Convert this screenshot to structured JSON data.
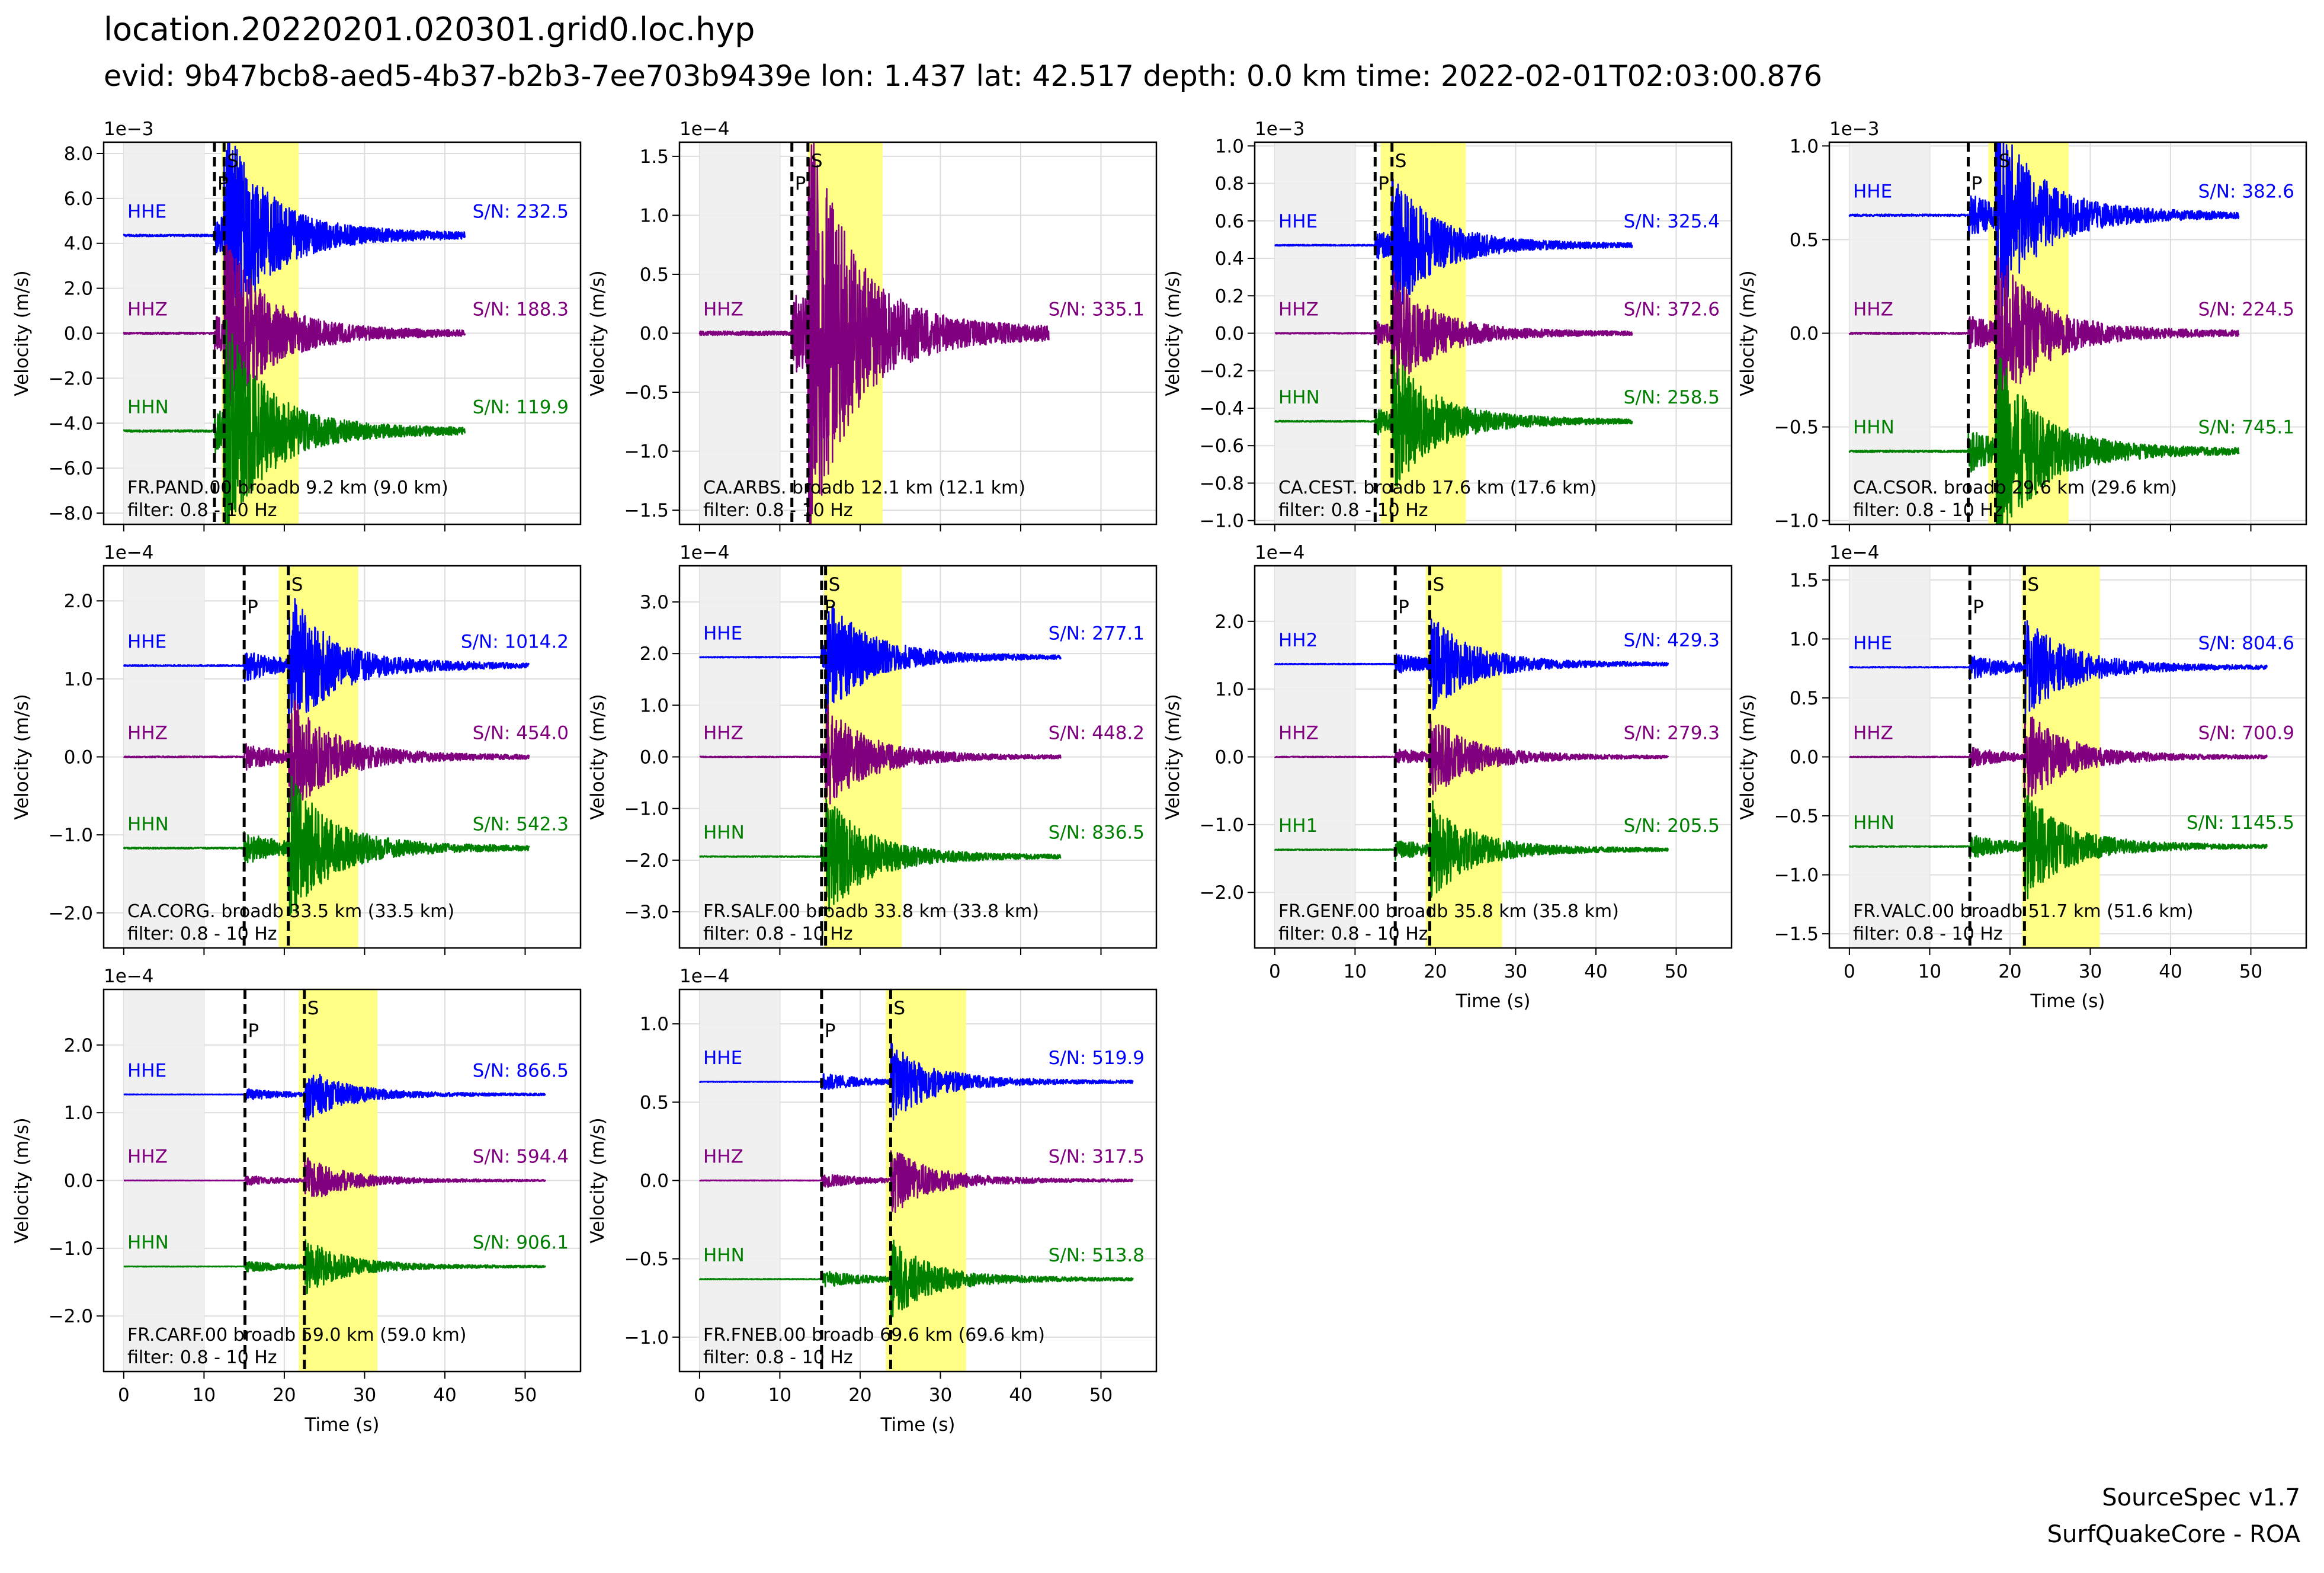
{
  "figure": {
    "title": "location.20220201.020301.grid0.loc.hyp",
    "subtitle": "evid: 9b47bcb8-aed5-4b37-b2b3-7ee703b9439e lon: 1.437 lat: 42.517 depth: 0.0 km time: 2022-02-01T02:03:00.876",
    "credit_line1": "SourceSpec v1.7",
    "credit_line2": "SurfQuakeCore - ROA"
  },
  "colors": {
    "E": "#0000ff",
    "Z": "#800080",
    "N": "#008000",
    "noise_window": "#eeeeee",
    "signal_window": "#ffff80",
    "grid": "#dddddd"
  },
  "chart_data": [
    {
      "type": "line",
      "station": "FR.PAND.00 broadb 9.2 km (9.0 km)",
      "filter": "filter: 0.8 - 10 Hz",
      "exponent": "1e−3",
      "ylabel": "Velocity (m/s)",
      "xlabel": "",
      "ylim": [
        -8.5,
        8.5
      ],
      "yticks": [
        8,
        6,
        4,
        2,
        0,
        -2,
        -4,
        -6,
        -8
      ],
      "yticklabels": [
        "8.0",
        "6.0",
        "4.0",
        "2.0",
        "0.0",
        "−2.0",
        "−4.0",
        "−6.0",
        "−8.0"
      ],
      "xlim": [
        -2.5,
        56.9
      ],
      "xticks": [
        0,
        10,
        20,
        30,
        40,
        50
      ],
      "xticklabels": [],
      "noise_window": [
        0,
        10
      ],
      "signal_window": [
        12.2,
        21.8
      ],
      "p_time": 11.3,
      "s_time": 12.5,
      "amp": 3.9,
      "duration": 42.5,
      "series": [
        {
          "name": "HHE",
          "sn": "S/N: 232.5",
          "offset": 4.35
        },
        {
          "name": "HHZ",
          "sn": "S/N: 188.3",
          "offset": 0
        },
        {
          "name": "HHN",
          "sn": "S/N: 119.9",
          "offset": -4.35
        }
      ]
    },
    {
      "type": "line",
      "station": "CA.ARBS. broadb 12.1 km (12.1 km)",
      "filter": "filter: 0.8 - 10 Hz",
      "exponent": "1e−4",
      "ylabel": "Velocity (m/s)",
      "xlabel": "",
      "ylim": [
        -1.62,
        1.62
      ],
      "yticks": [
        1.5,
        1,
        0.5,
        0,
        -0.5,
        -1,
        -1.5
      ],
      "yticklabels": [
        "1.5",
        "1.0",
        "0.5",
        "0.0",
        "−0.5",
        "−1.0",
        "−1.5"
      ],
      "xlim": [
        -2.5,
        56.9
      ],
      "xticks": [
        0,
        10,
        20,
        30,
        40,
        50
      ],
      "xticklabels": [],
      "noise_window": [
        0,
        10
      ],
      "signal_window": [
        13.5,
        22.8
      ],
      "p_time": 11.5,
      "s_time": 13.5,
      "amp": 1.5,
      "duration": 43.5,
      "series": [
        {
          "name": "HHZ",
          "sn": "S/N: 335.1",
          "offset": 0
        }
      ]
    },
    {
      "type": "line",
      "station": "CA.CEST. broadb 17.6 km (17.6 km)",
      "filter": "filter: 0.8 - 10 Hz",
      "exponent": "1e−3",
      "ylabel": "Velocity (m/s)",
      "xlabel": "",
      "ylim": [
        -1.02,
        1.02
      ],
      "yticks": [
        1,
        0.8,
        0.6,
        0.4,
        0.2,
        0,
        -0.2,
        -0.4,
        -0.6,
        -0.8,
        -1
      ],
      "yticklabels": [
        "1.0",
        "0.8",
        "0.6",
        "0.4",
        "0.2",
        "0.0",
        "−0.2",
        "−0.4",
        "−0.6",
        "−0.8",
        "−1.0"
      ],
      "xlim": [
        -2.5,
        56.9
      ],
      "xticks": [
        0,
        10,
        20,
        30,
        40,
        50
      ],
      "xticklabels": [],
      "noise_window": [
        0,
        10
      ],
      "signal_window": [
        13.2,
        23.8
      ],
      "p_time": 12.5,
      "s_time": 14.6,
      "amp": 0.3,
      "duration": 44.5,
      "series": [
        {
          "name": "HHE",
          "sn": "S/N: 325.4",
          "offset": 0.47
        },
        {
          "name": "HHZ",
          "sn": "S/N: 372.6",
          "offset": 0
        },
        {
          "name": "HHN",
          "sn": "S/N: 258.5",
          "offset": -0.47
        }
      ]
    },
    {
      "type": "line",
      "station": "CA.CSOR. broadb 29.6 km (29.6 km)",
      "filter": "filter: 0.8 - 10 Hz",
      "exponent": "1e−3",
      "ylabel": "Velocity (m/s)",
      "xlabel": "",
      "ylim": [
        -1.02,
        1.02
      ],
      "yticks": [
        1,
        0.5,
        0,
        -0.5,
        -1
      ],
      "yticklabels": [
        "1.0",
        "0.5",
        "0.0",
        "−0.5",
        "−1.0"
      ],
      "xlim": [
        -2.5,
        56.9
      ],
      "xticks": [
        0,
        10,
        20,
        30,
        40,
        50
      ],
      "xticklabels": [],
      "noise_window": [
        0,
        10
      ],
      "signal_window": [
        17.3,
        27.3
      ],
      "p_time": 14.8,
      "s_time": 18.2,
      "amp": 0.45,
      "duration": 48.5,
      "series": [
        {
          "name": "HHE",
          "sn": "S/N: 382.6",
          "offset": 0.63
        },
        {
          "name": "HHZ",
          "sn": "S/N: 224.5",
          "offset": 0
        },
        {
          "name": "HHN",
          "sn": "S/N: 745.1",
          "offset": -0.63
        }
      ]
    },
    {
      "type": "line",
      "station": "CA.CORG. broadb 33.5 km (33.5 km)",
      "filter": "filter: 0.8 - 10 Hz",
      "exponent": "1e−4",
      "ylabel": "Velocity (m/s)",
      "xlabel": "",
      "ylim": [
        -2.45,
        2.45
      ],
      "yticks": [
        2,
        1,
        0,
        -1,
        -2
      ],
      "yticklabels": [
        "2.0",
        "1.0",
        "0.0",
        "−1.0",
        "−2.0"
      ],
      "xlim": [
        -2.5,
        56.9
      ],
      "xticks": [
        0,
        10,
        20,
        30,
        40,
        50
      ],
      "xticklabels": [],
      "noise_window": [
        0,
        10
      ],
      "signal_window": [
        19.3,
        29.2
      ],
      "p_time": 15,
      "s_time": 20.5,
      "amp": 0.8,
      "duration": 50.5,
      "series": [
        {
          "name": "HHE",
          "sn": "S/N: 1014.2",
          "offset": 1.17
        },
        {
          "name": "HHZ",
          "sn": "S/N: 454.0",
          "offset": 0
        },
        {
          "name": "HHN",
          "sn": "S/N: 542.3",
          "offset": -1.17
        }
      ]
    },
    {
      "type": "line",
      "station": "FR.SALF.00 broadb 33.8 km (33.8 km)",
      "filter": "filter: 0.8 - 10 Hz",
      "exponent": "1e−4",
      "ylabel": "Velocity (m/s)",
      "xlabel": "",
      "ylim": [
        -3.7,
        3.7
      ],
      "yticks": [
        3,
        2,
        1,
        0,
        -1,
        -2,
        -3
      ],
      "yticklabels": [
        "3.0",
        "2.0",
        "1.0",
        "0.0",
        "−1.0",
        "−2.0",
        "−3.0"
      ],
      "xlim": [
        -2.5,
        56.9
      ],
      "xticks": [
        0,
        10,
        20,
        30,
        40,
        50
      ],
      "xticklabels": [],
      "noise_window": [
        0,
        10
      ],
      "signal_window": [
        15.5,
        25.2
      ],
      "p_time": 15.2,
      "s_time": 15.7,
      "amp": 0.9,
      "duration": 45,
      "series": [
        {
          "name": "HHE",
          "sn": "S/N: 277.1",
          "offset": 1.93
        },
        {
          "name": "HHZ",
          "sn": "S/N: 448.2",
          "offset": 0
        },
        {
          "name": "HHN",
          "sn": "S/N: 836.5",
          "offset": -1.93
        }
      ]
    },
    {
      "type": "line",
      "station": "FR.GENF.00 broadb 35.8 km (35.8 km)",
      "filter": "filter: 0.8 - 10 Hz",
      "exponent": "1e−4",
      "ylabel": "Velocity (m/s)",
      "xlabel": "Time (s)",
      "ylim": [
        -2.82,
        2.82
      ],
      "yticks": [
        2,
        1,
        0,
        -1,
        -2
      ],
      "yticklabels": [
        "2.0",
        "1.0",
        "0.0",
        "−1.0",
        "−2.0"
      ],
      "xlim": [
        -2.5,
        56.9
      ],
      "xticks": [
        0,
        10,
        20,
        30,
        40,
        50
      ],
      "xticklabels": [
        "0",
        "10",
        "20",
        "30",
        "40",
        "50"
      ],
      "noise_window": [
        0,
        10
      ],
      "signal_window": [
        18.8,
        28.3
      ],
      "p_time": 15,
      "s_time": 19.3,
      "amp": 0.6,
      "duration": 49,
      "series": [
        {
          "name": "HH2",
          "sn": "S/N: 429.3",
          "offset": 1.37
        },
        {
          "name": "HHZ",
          "sn": "S/N: 279.3",
          "offset": 0
        },
        {
          "name": "HH1",
          "sn": "S/N: 205.5",
          "offset": -1.37
        }
      ]
    },
    {
      "type": "line",
      "station": "FR.VALC.00 broadb 51.7 km (51.6 km)",
      "filter": "filter: 0.8 - 10 Hz",
      "exponent": "1e−4",
      "ylabel": "Velocity (m/s)",
      "xlabel": "Time (s)",
      "ylim": [
        -1.62,
        1.62
      ],
      "yticks": [
        1.5,
        1,
        0.5,
        0,
        -0.5,
        -1,
        -1.5
      ],
      "yticklabels": [
        "1.5",
        "1.0",
        "0.5",
        "0.0",
        "−0.5",
        "−1.0",
        "−1.5"
      ],
      "xlim": [
        -2.5,
        56.9
      ],
      "xticks": [
        0,
        10,
        20,
        30,
        40,
        50
      ],
      "xticklabels": [
        "0",
        "10",
        "20",
        "30",
        "40",
        "50"
      ],
      "noise_window": [
        0,
        10
      ],
      "signal_window": [
        21.5,
        31.2
      ],
      "p_time": 15,
      "s_time": 21.8,
      "amp": 0.4,
      "duration": 52,
      "series": [
        {
          "name": "HHE",
          "sn": "S/N: 804.6",
          "offset": 0.76
        },
        {
          "name": "HHZ",
          "sn": "S/N: 700.9",
          "offset": 0
        },
        {
          "name": "HHN",
          "sn": "S/N: 1145.5",
          "offset": -0.76
        }
      ]
    },
    {
      "type": "line",
      "station": "FR.CARF.00 broadb 59.0 km (59.0 km)",
      "filter": "filter: 0.8 - 10 Hz",
      "exponent": "1e−4",
      "ylabel": "Velocity (m/s)",
      "xlabel": "Time (s)",
      "ylim": [
        -2.82,
        2.82
      ],
      "yticks": [
        2,
        1,
        0,
        -1,
        -2
      ],
      "yticklabels": [
        "2.0",
        "1.0",
        "0.0",
        "−1.0",
        "−2.0"
      ],
      "xlim": [
        -2.5,
        56.9
      ],
      "xticks": [
        0,
        10,
        20,
        30,
        40,
        50
      ],
      "xticklabels": [
        "0",
        "10",
        "20",
        "30",
        "40",
        "50"
      ],
      "noise_window": [
        0,
        10
      ],
      "signal_window": [
        21.8,
        31.6
      ],
      "p_time": 15.1,
      "s_time": 22.5,
      "amp": 0.35,
      "duration": 52.5,
      "series": [
        {
          "name": "HHE",
          "sn": "S/N: 866.5",
          "offset": 1.27
        },
        {
          "name": "HHZ",
          "sn": "S/N: 594.4",
          "offset": 0
        },
        {
          "name": "HHN",
          "sn": "S/N: 906.1",
          "offset": -1.27
        }
      ]
    },
    {
      "type": "line",
      "station": "FR.FNEB.00 broadb 69.6 km (69.6 km)",
      "filter": "filter: 0.8 - 10 Hz",
      "exponent": "1e−4",
      "ylabel": "Velocity (m/s)",
      "xlabel": "Time (s)",
      "ylim": [
        -1.22,
        1.22
      ],
      "yticks": [
        1,
        0.5,
        0,
        -0.5,
        -1
      ],
      "yticklabels": [
        "1.0",
        "0.5",
        "0.0",
        "−0.5",
        "−1.0"
      ],
      "xlim": [
        -2.5,
        56.9
      ],
      "xticks": [
        0,
        10,
        20,
        30,
        40,
        50
      ],
      "xticklabels": [
        "0",
        "10",
        "20",
        "30",
        "40",
        "50"
      ],
      "noise_window": [
        0,
        10
      ],
      "signal_window": [
        23.2,
        33.2
      ],
      "p_time": 15.2,
      "s_time": 23.8,
      "amp": 0.22,
      "duration": 54,
      "series": [
        {
          "name": "HHE",
          "sn": "S/N: 519.9",
          "offset": 0.63
        },
        {
          "name": "HHZ",
          "sn": "S/N: 317.5",
          "offset": 0
        },
        {
          "name": "HHN",
          "sn": "S/N: 513.8",
          "offset": -0.63
        }
      ]
    }
  ]
}
